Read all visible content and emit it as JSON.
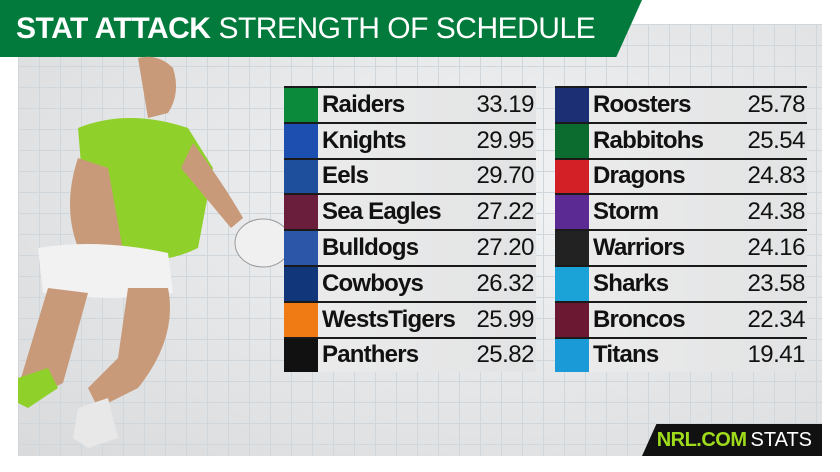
{
  "header": {
    "title_bold": "STAT ATTACK",
    "title_light": "STRENGTH OF SCHEDULE"
  },
  "left": [
    {
      "team": "Raiders",
      "value": "33.19",
      "color": "#0a8a3a",
      "icon": "raiders-logo"
    },
    {
      "team": "Knights",
      "value": "29.95",
      "color": "#1c4fb0",
      "icon": "knights-logo"
    },
    {
      "team": "Eels",
      "value": "29.70",
      "color": "#1d4f9c",
      "icon": "eels-logo"
    },
    {
      "team": "Sea Eagles",
      "value": "27.22",
      "color": "#6b1d3c",
      "icon": "sea-eagles-logo"
    },
    {
      "team": "Bulldogs",
      "value": "27.20",
      "color": "#2c56a8",
      "icon": "bulldogs-logo"
    },
    {
      "team": "Cowboys",
      "value": "26.32",
      "color": "#12367a",
      "icon": "cowboys-logo"
    },
    {
      "team": "WestsTigers",
      "value": "25.99",
      "color": "#f07a14",
      "icon": "wests-tigers-logo"
    },
    {
      "team": "Panthers",
      "value": "25.82",
      "color": "#111111",
      "icon": "panthers-logo"
    }
  ],
  "right": [
    {
      "team": "Roosters",
      "value": "25.78",
      "color": "#1c2f74",
      "icon": "roosters-logo"
    },
    {
      "team": "Rabbitohs",
      "value": "25.54",
      "color": "#0c6b2f",
      "icon": "rabbitohs-logo"
    },
    {
      "team": "Dragons",
      "value": "24.83",
      "color": "#d32027",
      "icon": "dragons-logo"
    },
    {
      "team": "Storm",
      "value": "24.38",
      "color": "#5b2a92",
      "icon": "storm-logo"
    },
    {
      "team": "Warriors",
      "value": "24.16",
      "color": "#222222",
      "icon": "warriors-logo"
    },
    {
      "team": "Sharks",
      "value": "23.58",
      "color": "#1ba3d8",
      "icon": "sharks-logo"
    },
    {
      "team": "Broncos",
      "value": "22.34",
      "color": "#6b1832",
      "icon": "broncos-logo"
    },
    {
      "team": "Titans",
      "value": "19.41",
      "color": "#1a9ad6",
      "icon": "titans-logo"
    }
  ],
  "footer": {
    "brand": "NRL.COM",
    "label": "STATS"
  }
}
